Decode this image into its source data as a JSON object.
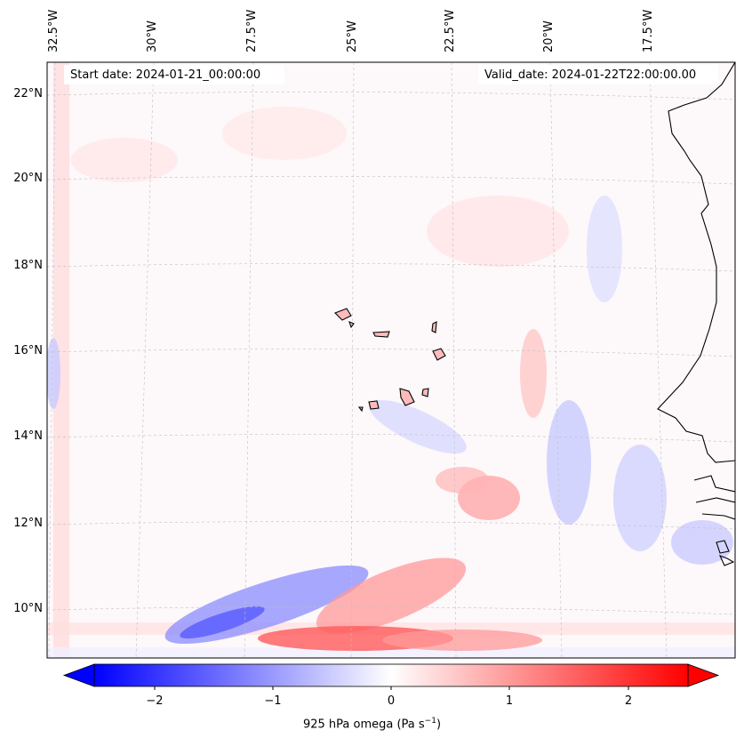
{
  "map": {
    "lon_labels": [
      "32.5°W",
      "30°W",
      "27.5°W",
      "25°W",
      "22.5°W",
      "20°W",
      "17.5°W"
    ],
    "lat_labels": [
      "22°N",
      "20°N",
      "18°N",
      "16°N",
      "14°N",
      "12°N",
      "10°N"
    ],
    "start_date": "Start date: 2024-01-21_00:00:00",
    "valid_date": "Valid_date: 2024-01-22T22:00:00.00",
    "colorbar": {
      "ticks": [
        "−2",
        "−1",
        "0",
        "1",
        "2"
      ],
      "label_prefix": "925 hPa omega (Pa s",
      "label_exp": "−1",
      "label_suffix": ")",
      "colors": {
        "negative": "#0000ff",
        "zero": "#ffffff",
        "positive": "#ff0000"
      },
      "range": [
        -2.6,
        2.6
      ]
    }
  }
}
